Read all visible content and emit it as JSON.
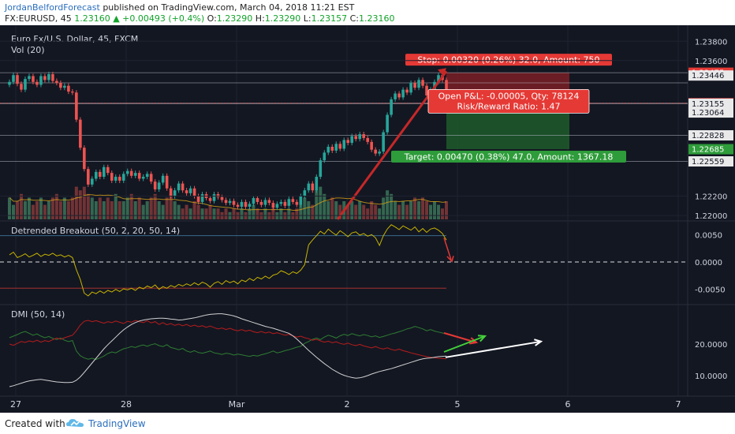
{
  "header": {
    "author": "JordanBelfordForecast",
    "published": " published on TradingView.com, March 04, 2018 11:21 EST",
    "symbol": "FX:EURUSD, 45",
    "last": " 1.23160 ",
    "change_arrow": "▲",
    "change": " +0.00493 (+0.4%)",
    "o_label": " O:",
    "o_value": "1.23290",
    "h_label": " H:",
    "h_value": "1.23290",
    "l_label": " L:",
    "l_value": "1.23157",
    "c_label": " C:",
    "c_value": "1.23160"
  },
  "footer": {
    "created_with": "Created with",
    "brand": "TradingView"
  },
  "colors": {
    "background": "#131722",
    "grid": "#1f2330",
    "up": "#26a69a",
    "down": "#ef5350",
    "vol_up": "#3d7a5c",
    "vol_down": "#8b3b3b",
    "stop_zone": "#7a1f24",
    "target_zone": "#1f5a2a",
    "breakout_line": "#c8b400",
    "dmi_plus": "#2e7d32",
    "dmi_minus": "#b71c1c",
    "adx": "#d0d0d0"
  },
  "chart_data": [
    {
      "type": "candlestick",
      "title": "Euro Fx/U.S. Dollar, 45, FXCM",
      "subtitle": "Vol (20)",
      "x_ticks": [
        "27",
        "28",
        "Mar",
        "2",
        "5",
        "6",
        "7"
      ],
      "y_ticks": [
        "1.23800",
        "1.23600",
        "1.22200",
        "1.22000"
      ],
      "ylim": [
        1.2196,
        1.239
      ],
      "price_tags": [
        {
          "label": "1.23475",
          "value": 1.23475,
          "style": "red"
        },
        {
          "label": "1.23446",
          "value": 1.23446,
          "style": "gray"
        },
        {
          "label": "1.23160",
          "value": 1.2316,
          "style": "red"
        },
        {
          "label": "1.23155",
          "value": 1.23155,
          "style": "gray"
        },
        {
          "label": "1.23064",
          "value": 1.23064,
          "style": "gray"
        },
        {
          "label": "1.22828",
          "value": 1.22828,
          "style": "gray"
        },
        {
          "label": "1.22685",
          "value": 1.22685,
          "style": "green"
        },
        {
          "label": "1.22559",
          "value": 1.22559,
          "style": "gray"
        }
      ],
      "horizontal_levels": [
        1.23475,
        1.2337,
        1.2316,
        1.23155,
        1.22828,
        1.22559
      ],
      "position": {
        "stop_label": "Stop: 0.00320 (0.26%) 32.0, Amount: 750",
        "target_label": "Target: 0.00470 (0.38%) 47.0, Amount: 1367.18",
        "pnl_label": "Open P&L: -0.00005, Qty: 78124",
        "rr_label": "Risk/Reward Ratio: 1.47",
        "entry": 1.23155,
        "stop": 1.23475,
        "target": 1.22685
      },
      "closes": [
        1.2338,
        1.2345,
        1.2336,
        1.233,
        1.2341,
        1.2344,
        1.2338,
        1.2335,
        1.2344,
        1.234,
        1.2346,
        1.2339,
        1.2337,
        1.2332,
        1.2334,
        1.2328,
        1.2327,
        1.2299,
        1.227,
        1.2248,
        1.2232,
        1.2238,
        1.2245,
        1.224,
        1.225,
        1.2244,
        1.2236,
        1.224,
        1.2236,
        1.2243,
        1.2246,
        1.2241,
        1.2244,
        1.2238,
        1.224,
        1.2243,
        1.2235,
        1.2227,
        1.2234,
        1.2241,
        1.2228,
        1.222,
        1.2226,
        1.2233,
        1.2226,
        1.2223,
        1.2228,
        1.222,
        1.2214,
        1.2222,
        1.2218,
        1.2215,
        1.2222,
        1.2219,
        1.2216,
        1.2213,
        1.2215,
        1.2211,
        1.2209,
        1.2214,
        1.2209,
        1.2212,
        1.2218,
        1.2214,
        1.2211,
        1.2216,
        1.2213,
        1.2208,
        1.2212,
        1.2214,
        1.221,
        1.2217,
        1.2214,
        1.2211,
        1.222,
        1.2226,
        1.2233,
        1.2226,
        1.224,
        1.2257,
        1.2265,
        1.2271,
        1.2267,
        1.2274,
        1.2269,
        1.2278,
        1.2275,
        1.2282,
        1.2279,
        1.2284,
        1.228,
        1.2276,
        1.2268,
        1.2264,
        1.2266,
        1.2286,
        1.2304,
        1.232,
        1.2326,
        1.2322,
        1.233,
        1.2327,
        1.2337,
        1.2332,
        1.234,
        1.2334,
        1.2324,
        1.233,
        1.2338,
        1.2345,
        1.234,
        1.2316
      ],
      "volumes": [
        0.6,
        0.4,
        0.5,
        0.7,
        0.5,
        0.6,
        0.4,
        0.5,
        0.6,
        0.4,
        0.5,
        0.6,
        0.7,
        0.5,
        0.6,
        0.5,
        0.6,
        0.9,
        0.8,
        0.9,
        0.7,
        0.6,
        0.5,
        0.6,
        0.5,
        0.6,
        0.5,
        0.7,
        0.5,
        0.5,
        0.6,
        0.7,
        0.5,
        0.6,
        0.4,
        0.5,
        0.6,
        0.7,
        0.5,
        0.4,
        0.6,
        0.7,
        0.5,
        0.4,
        0.3,
        0.4,
        0.3,
        0.5,
        0.4,
        0.3,
        0.3,
        0.4,
        0.3,
        0.3,
        0.2,
        0.3,
        0.2,
        0.3,
        0.2,
        0.3,
        0.2,
        0.3,
        0.4,
        0.3,
        0.2,
        0.3,
        0.2,
        0.3,
        0.2,
        0.3,
        0.2,
        0.3,
        0.2,
        0.3,
        0.4,
        0.6,
        0.5,
        0.4,
        0.8,
        0.9,
        0.7,
        0.5,
        0.6,
        0.5,
        0.4,
        0.5,
        0.4,
        0.5,
        0.4,
        0.5,
        0.4,
        0.3,
        0.5,
        0.4,
        0.3,
        0.6,
        0.8,
        0.7,
        0.5,
        0.4,
        0.5,
        0.4,
        0.5,
        0.6,
        0.5,
        0.6,
        0.5,
        0.4,
        0.5,
        0.4,
        0.3,
        0.5
      ]
    },
    {
      "type": "line",
      "title": "Detrended Breakout (50, 2, 20, 50, 14)",
      "y_ticks": [
        "0.0050",
        "0.0000",
        "-0.0050"
      ],
      "ylim": [
        -0.0075,
        0.0072
      ],
      "upper_band": 0.0048,
      "lower_band": -0.0048,
      "series": [
        {
          "values": [
            0.0013,
            0.0018,
            0.0008,
            0.0011,
            0.0015,
            0.0009,
            0.0012,
            0.0016,
            0.001,
            0.0014,
            0.0012,
            0.0016,
            0.0011,
            0.0013,
            0.0009,
            0.0012,
            0.0008,
            -0.0014,
            -0.0032,
            -0.0057,
            -0.0062,
            -0.0055,
            -0.0058,
            -0.0053,
            -0.0057,
            -0.0052,
            -0.0055,
            -0.005,
            -0.0054,
            -0.0049,
            -0.0051,
            -0.0048,
            -0.0052,
            -0.0046,
            -0.0049,
            -0.0044,
            -0.0047,
            -0.0042,
            -0.005,
            -0.0045,
            -0.0048,
            -0.0043,
            -0.0046,
            -0.0041,
            -0.0044,
            -0.004,
            -0.0043,
            -0.0038,
            -0.0042,
            -0.0037,
            -0.004,
            -0.0046,
            -0.0039,
            -0.0036,
            -0.0041,
            -0.0034,
            -0.0038,
            -0.0035,
            -0.004,
            -0.0033,
            -0.0036,
            -0.003,
            -0.0034,
            -0.0028,
            -0.0031,
            -0.0026,
            -0.003,
            -0.0024,
            -0.0022,
            -0.0016,
            -0.0019,
            -0.0023,
            -0.0018,
            -0.0021,
            -0.0015,
            -0.0005,
            0.0031,
            0.004,
            0.0048,
            0.0056,
            0.0051,
            0.006,
            0.0054,
            0.0049,
            0.0057,
            0.0052,
            0.0046,
            0.0053,
            0.0055,
            0.0049,
            0.0052,
            0.0047,
            0.005,
            0.0044,
            0.003,
            0.0048,
            0.006,
            0.0068,
            0.0064,
            0.0059,
            0.0066,
            0.0062,
            0.0058,
            0.0064,
            0.0055,
            0.0061,
            0.0054,
            0.006,
            0.0062,
            0.0058,
            0.0052,
            0.004
          ]
        }
      ]
    },
    {
      "type": "line",
      "title": "DMI (50, 14)",
      "y_ticks": [
        "20.0000",
        "10.0000"
      ],
      "ylim": [
        4,
        32
      ],
      "series": [
        {
          "values": [
            22,
            22.5,
            23,
            23.6,
            24,
            23.4,
            22.8,
            23.2,
            22.5,
            22,
            22.4,
            21.8,
            21.4,
            21.9,
            21.2,
            20.8,
            21.1,
            17.8,
            16.3,
            15.6,
            15.2,
            15.5,
            15.1,
            15.6,
            16.2,
            17,
            17.5,
            17.2,
            17.9,
            18.5,
            18.8,
            19.2,
            18.9,
            19.4,
            19.7,
            19.3,
            19.8,
            20.1,
            19.5,
            19.2,
            19.8,
            18.9,
            18.6,
            18.2,
            18.6,
            17.8,
            17.4,
            17.9,
            17.3,
            17.1,
            17.4,
            17.8,
            17.2,
            17,
            16.7,
            17.1,
            16.9,
            16.5,
            16.8,
            16.6,
            16.3,
            16.1,
            16.4,
            16.2,
            16.6,
            16.9,
            17.3,
            17.8,
            17.2,
            17.5,
            17.9,
            18.2,
            18.6,
            19,
            19.3,
            20.2,
            20.8,
            21.5,
            21.9,
            21.4,
            22.2,
            22.8,
            22.4,
            21.9,
            22.6,
            23.1,
            22.7,
            23.3,
            22.9,
            22.6,
            23,
            22.7,
            22.3,
            22.6,
            22.1,
            22.4,
            22.8,
            23.2,
            23.5,
            23.9,
            24.3,
            24.8,
            25.1,
            25.6,
            25.2,
            24.8,
            24.2,
            24.6,
            24.1,
            23.8,
            23.5,
            23.2
          ]
        },
        {
          "values": [
            20,
            19.6,
            20.2,
            20.8,
            20.5,
            21,
            20.7,
            21.2,
            20.6,
            21.1,
            20.8,
            21.4,
            21.9,
            21.5,
            22,
            22.4,
            22.8,
            24.2,
            26,
            27.2,
            27.5,
            27.1,
            27.4,
            27,
            26.6,
            27.1,
            26.8,
            27.3,
            26.9,
            26.5,
            27.2,
            26.9,
            27.5,
            27.1,
            26.8,
            27.4,
            26.7,
            27.1,
            26.2,
            26.8,
            26.1,
            26.5,
            25.9,
            26.3,
            25.8,
            26.2,
            25.6,
            26,
            25.5,
            25.8,
            25.3,
            25.7,
            25.2,
            24.8,
            25.1,
            24.6,
            25,
            24.5,
            24.2,
            24.6,
            24.1,
            24.4,
            23.9,
            23.6,
            24,
            23.5,
            23.8,
            23.3,
            23.6,
            23.2,
            22.8,
            23.1,
            22.6,
            22.2,
            22.5,
            22,
            21.7,
            21.2,
            21.5,
            21,
            20.6,
            20.9,
            20.4,
            20.7,
            20.2,
            19.9,
            20.3,
            19.8,
            19.5,
            19.9,
            19.4,
            19.1,
            18.8,
            19.2,
            18.7,
            18.4,
            18.8,
            18.3,
            18,
            18.4,
            17.9,
            17.6,
            17.2,
            16.9,
            16.6,
            16.3,
            16,
            15.8,
            15.6,
            15.5,
            15.4,
            15.3
          ]
        },
        {
          "values": [
            6.5,
            6.8,
            7.2,
            7.6,
            8,
            8.3,
            8.5,
            8.7,
            8.8,
            8.6,
            8.4,
            8.2,
            8,
            7.9,
            7.8,
            7.8,
            7.9,
            8.5,
            9.6,
            11,
            12.5,
            14,
            15.5,
            17,
            18.5,
            19.8,
            21,
            22.2,
            23.4,
            24.5,
            25.4,
            26.2,
            26.8,
            27.3,
            27.6,
            27.8,
            28,
            28.1,
            28.2,
            28.2,
            28.1,
            27.9,
            27.8,
            27.6,
            27.7,
            27.9,
            28.1,
            28.3,
            28.6,
            28.9,
            29.2,
            29.4,
            29.5,
            29.6,
            29.6,
            29.4,
            29.2,
            28.9,
            28.5,
            28,
            27.6,
            27.2,
            26.8,
            26.4,
            26,
            25.6,
            25.3,
            25,
            24.6,
            24.2,
            23.8,
            23.4,
            22.6,
            21.6,
            20.4,
            19.2,
            18,
            16.9,
            15.8,
            14.8,
            13.8,
            12.9,
            12,
            11.3,
            10.6,
            10.1,
            9.7,
            9.4,
            9.2,
            9.3,
            9.6,
            10,
            10.5,
            10.9,
            11.3,
            11.6,
            11.9,
            12.2,
            12.6,
            13,
            13.4,
            13.8,
            14.2,
            14.6,
            15,
            15.3,
            15.5,
            15.6,
            15.8,
            16,
            16.1,
            16.2
          ]
        }
      ]
    }
  ]
}
